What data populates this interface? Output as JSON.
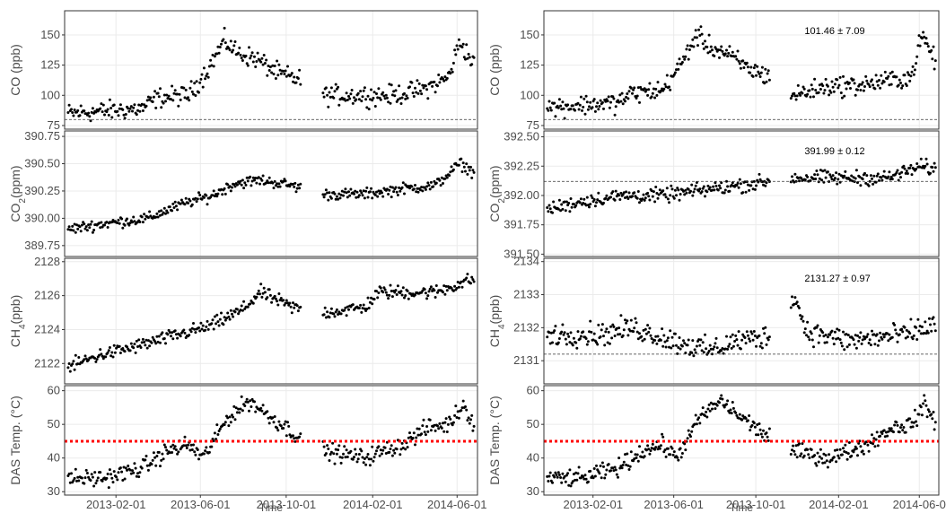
{
  "chart_data": {
    "type": "scatter",
    "x_axis": {
      "label": "Time",
      "ticks": [
        "2013-02-01",
        "2013-06-01",
        "2013-10-01",
        "2014-02-01",
        "2014-06-01"
      ],
      "ticks_right": [
        "2013-02-01",
        "2013-06-01",
        "2013-10-01",
        "2014-02-01",
        "2014-06-0"
      ],
      "range": [
        "2012-11-20",
        "2014-06-30"
      ]
    },
    "grid": true,
    "marker_color": "#000000",
    "panels": {
      "left": [
        {
          "id": "co",
          "ylabel": "CO (ppb)",
          "yticks": [
            "150",
            "125",
            "100",
            "75"
          ],
          "ylim": [
            72,
            170
          ],
          "baseline": 80,
          "series": [
            [
              "2012-11-25",
              85
            ],
            [
              "2013-01-15",
              87
            ],
            [
              "2013-03-10",
              89
            ],
            [
              "2013-04-01",
              98
            ],
            [
              "2013-05-15",
              100
            ],
            [
              "2013-06-10",
              120
            ],
            [
              "2013-07-05",
              145
            ],
            [
              "2013-07-25",
              135
            ],
            [
              "2013-08-20",
              130
            ],
            [
              "2013-09-20",
              118
            ],
            [
              "2013-10-25",
              112
            ],
            [
              "2013-11-25",
              100
            ],
            [
              "2014-01-20",
              100
            ],
            [
              "2014-03-01",
              100
            ],
            [
              "2014-04-15",
              105
            ],
            [
              "2014-05-20",
              115
            ],
            [
              "2014-06-05",
              145
            ],
            [
              "2014-06-25",
              125
            ]
          ],
          "spread": 8
        },
        {
          "id": "co2",
          "ylabel": "CO2(ppm)",
          "ylabel_main": "CO",
          "ylabel_sub": "2",
          "ylabel_unit": "(ppm)",
          "yticks": [
            "390.75",
            "390.50",
            "390.25",
            "390.00",
            "389.75"
          ],
          "ylim": [
            389.65,
            390.8
          ],
          "series": [
            [
              "2012-11-25",
              389.9
            ],
            [
              "2013-01-15",
              389.95
            ],
            [
              "2013-03-20",
              390.0
            ],
            [
              "2013-04-05",
              390.05
            ],
            [
              "2013-05-15",
              390.15
            ],
            [
              "2013-06-15",
              390.2
            ],
            [
              "2013-07-20",
              390.32
            ],
            [
              "2013-08-25",
              390.35
            ],
            [
              "2013-10-10",
              390.3
            ],
            [
              "2013-11-25",
              390.22
            ],
            [
              "2014-01-20",
              390.22
            ],
            [
              "2014-03-15",
              390.27
            ],
            [
              "2014-05-01",
              390.3
            ],
            [
              "2014-06-05",
              390.5
            ],
            [
              "2014-06-25",
              390.42
            ]
          ],
          "spread": 0.05
        },
        {
          "id": "ch4",
          "ylabel": "CH4(ppb)",
          "ylabel_main": "CH",
          "ylabel_sub": "4",
          "ylabel_unit": "(ppb)",
          "yticks": [
            "2128",
            "2126",
            "2124",
            "2122"
          ],
          "ylim": [
            2120.8,
            2128.2
          ],
          "series": [
            [
              "2012-11-25",
              2121.8
            ],
            [
              "2013-01-10",
              2122.5
            ],
            [
              "2013-03-01",
              2123.0
            ],
            [
              "2013-05-01",
              2123.7
            ],
            [
              "2013-06-15",
              2124.2
            ],
            [
              "2013-08-01",
              2125.2
            ],
            [
              "2013-08-25",
              2126.2
            ],
            [
              "2013-10-10",
              2125.3
            ],
            [
              "2013-11-25",
              2125.0
            ],
            [
              "2014-01-20",
              2125.3
            ],
            [
              "2014-02-10",
              2126.2
            ],
            [
              "2014-05-01",
              2126.2
            ],
            [
              "2014-06-25",
              2127.0
            ]
          ],
          "spread": 0.4
        },
        {
          "id": "das",
          "ylabel": "DAS Temp. (°C)",
          "yticks": [
            "60",
            "50",
            "40",
            "30"
          ],
          "ylim": [
            29,
            61.5
          ],
          "threshold": 45,
          "series": [
            [
              "2012-11-25",
              34
            ],
            [
              "2013-01-15",
              34
            ],
            [
              "2013-03-10",
              37
            ],
            [
              "2013-04-15",
              42
            ],
            [
              "2013-05-15",
              44
            ],
            [
              "2013-06-05",
              40
            ],
            [
              "2013-07-10",
              52
            ],
            [
              "2013-08-10",
              57
            ],
            [
              "2013-09-10",
              52
            ],
            [
              "2013-10-15",
              47
            ],
            [
              "2013-11-25",
              42
            ],
            [
              "2014-01-20",
              40
            ],
            [
              "2014-03-15",
              44
            ],
            [
              "2014-04-20",
              49
            ],
            [
              "2014-05-20",
              50
            ],
            [
              "2014-06-10",
              56
            ],
            [
              "2014-06-25",
              50
            ]
          ],
          "spread": 2.5
        }
      ],
      "right": [
        {
          "id": "co_r",
          "ylabel": "CO (ppb)",
          "yticks": [
            "150",
            "125",
            "100",
            "75"
          ],
          "ylim": [
            72,
            170
          ],
          "baseline": 80,
          "annotation": "101.46 ± 7.09",
          "series": [
            [
              "2012-11-25",
              90
            ],
            [
              "2013-01-15",
              92
            ],
            [
              "2013-03-10",
              94
            ],
            [
              "2013-04-01",
              102
            ],
            [
              "2013-05-15",
              104
            ],
            [
              "2013-06-10",
              124
            ],
            [
              "2013-07-05",
              150
            ],
            [
              "2013-07-25",
              140
            ],
            [
              "2013-08-20",
              134
            ],
            [
              "2013-09-20",
              122
            ],
            [
              "2013-10-25",
              115
            ],
            [
              "2013-11-25",
              100
            ],
            [
              "2014-01-20",
              108
            ],
            [
              "2014-03-01",
              108
            ],
            [
              "2014-04-15",
              112
            ],
            [
              "2014-05-20",
              115
            ],
            [
              "2014-06-05",
              150
            ],
            [
              "2014-06-25",
              128
            ]
          ],
          "spread": 8
        },
        {
          "id": "co2_r",
          "ylabel": "CO2(ppm)",
          "ylabel_main": "CO",
          "ylabel_sub": "2",
          "ylabel_unit": "(ppm)",
          "yticks": [
            "392.50",
            "392.25",
            "392.00",
            "391.75",
            "391.50"
          ],
          "ylim": [
            391.48,
            392.55
          ],
          "baseline": 392.12,
          "annotation": "391.99 ± 0.12",
          "series": [
            [
              "2012-11-25",
              391.88
            ],
            [
              "2013-01-15",
              391.95
            ],
            [
              "2013-03-20",
              392.0
            ],
            [
              "2013-05-15",
              392.0
            ],
            [
              "2013-07-20",
              392.05
            ],
            [
              "2013-09-25",
              392.1
            ],
            [
              "2013-11-25",
              392.15
            ],
            [
              "2014-02-01",
              392.15
            ],
            [
              "2014-04-15",
              392.15
            ],
            [
              "2014-06-05",
              392.25
            ],
            [
              "2014-06-25",
              392.22
            ]
          ],
          "spread": 0.06
        },
        {
          "id": "ch4_r",
          "ylabel": "CH4(ppb)",
          "ylabel_main": "CH",
          "ylabel_sub": "4",
          "ylabel_unit": "(ppb)",
          "yticks": [
            "2134",
            "2133",
            "2132",
            "2131"
          ],
          "ylim": [
            2130.3,
            2134.1
          ],
          "baseline": 2131.2,
          "annotation": "2131.27 ± 0.97",
          "series": [
            [
              "2012-11-25",
              2131.8
            ],
            [
              "2013-02-15",
              2131.8
            ],
            [
              "2013-04-01",
              2132.0
            ],
            [
              "2013-06-01",
              2131.6
            ],
            [
              "2013-07-25",
              2131.3
            ],
            [
              "2013-09-01",
              2131.6
            ],
            [
              "2013-11-15",
              2131.8
            ],
            [
              "2013-11-25",
              2133.1
            ],
            [
              "2013-12-15",
              2131.9
            ],
            [
              "2014-02-15",
              2131.6
            ],
            [
              "2014-04-01",
              2131.7
            ],
            [
              "2014-05-15",
              2131.8
            ],
            [
              "2014-06-25",
              2132.1
            ]
          ],
          "spread": 0.35
        },
        {
          "id": "das_r",
          "ylabel": "DAS Temp. (°C)",
          "yticks": [
            "60",
            "50",
            "40",
            "30"
          ],
          "ylim": [
            29,
            61.5
          ],
          "threshold": 45,
          "series": [
            [
              "2012-11-25",
              34
            ],
            [
              "2013-01-15",
              34
            ],
            [
              "2013-03-10",
              37
            ],
            [
              "2013-04-15",
              42
            ],
            [
              "2013-05-15",
              44
            ],
            [
              "2013-06-05",
              40
            ],
            [
              "2013-07-10",
              52
            ],
            [
              "2013-08-10",
              57
            ],
            [
              "2013-09-10",
              52
            ],
            [
              "2013-10-15",
              47
            ],
            [
              "2013-11-25",
              42
            ],
            [
              "2014-01-20",
              40
            ],
            [
              "2014-03-15",
              44
            ],
            [
              "2014-04-20",
              49
            ],
            [
              "2014-05-20",
              50
            ],
            [
              "2014-06-10",
              56
            ],
            [
              "2014-06-25",
              50
            ]
          ],
          "spread": 2.5
        }
      ]
    },
    "gap": [
      "2013-10-22",
      "2013-11-22"
    ]
  }
}
